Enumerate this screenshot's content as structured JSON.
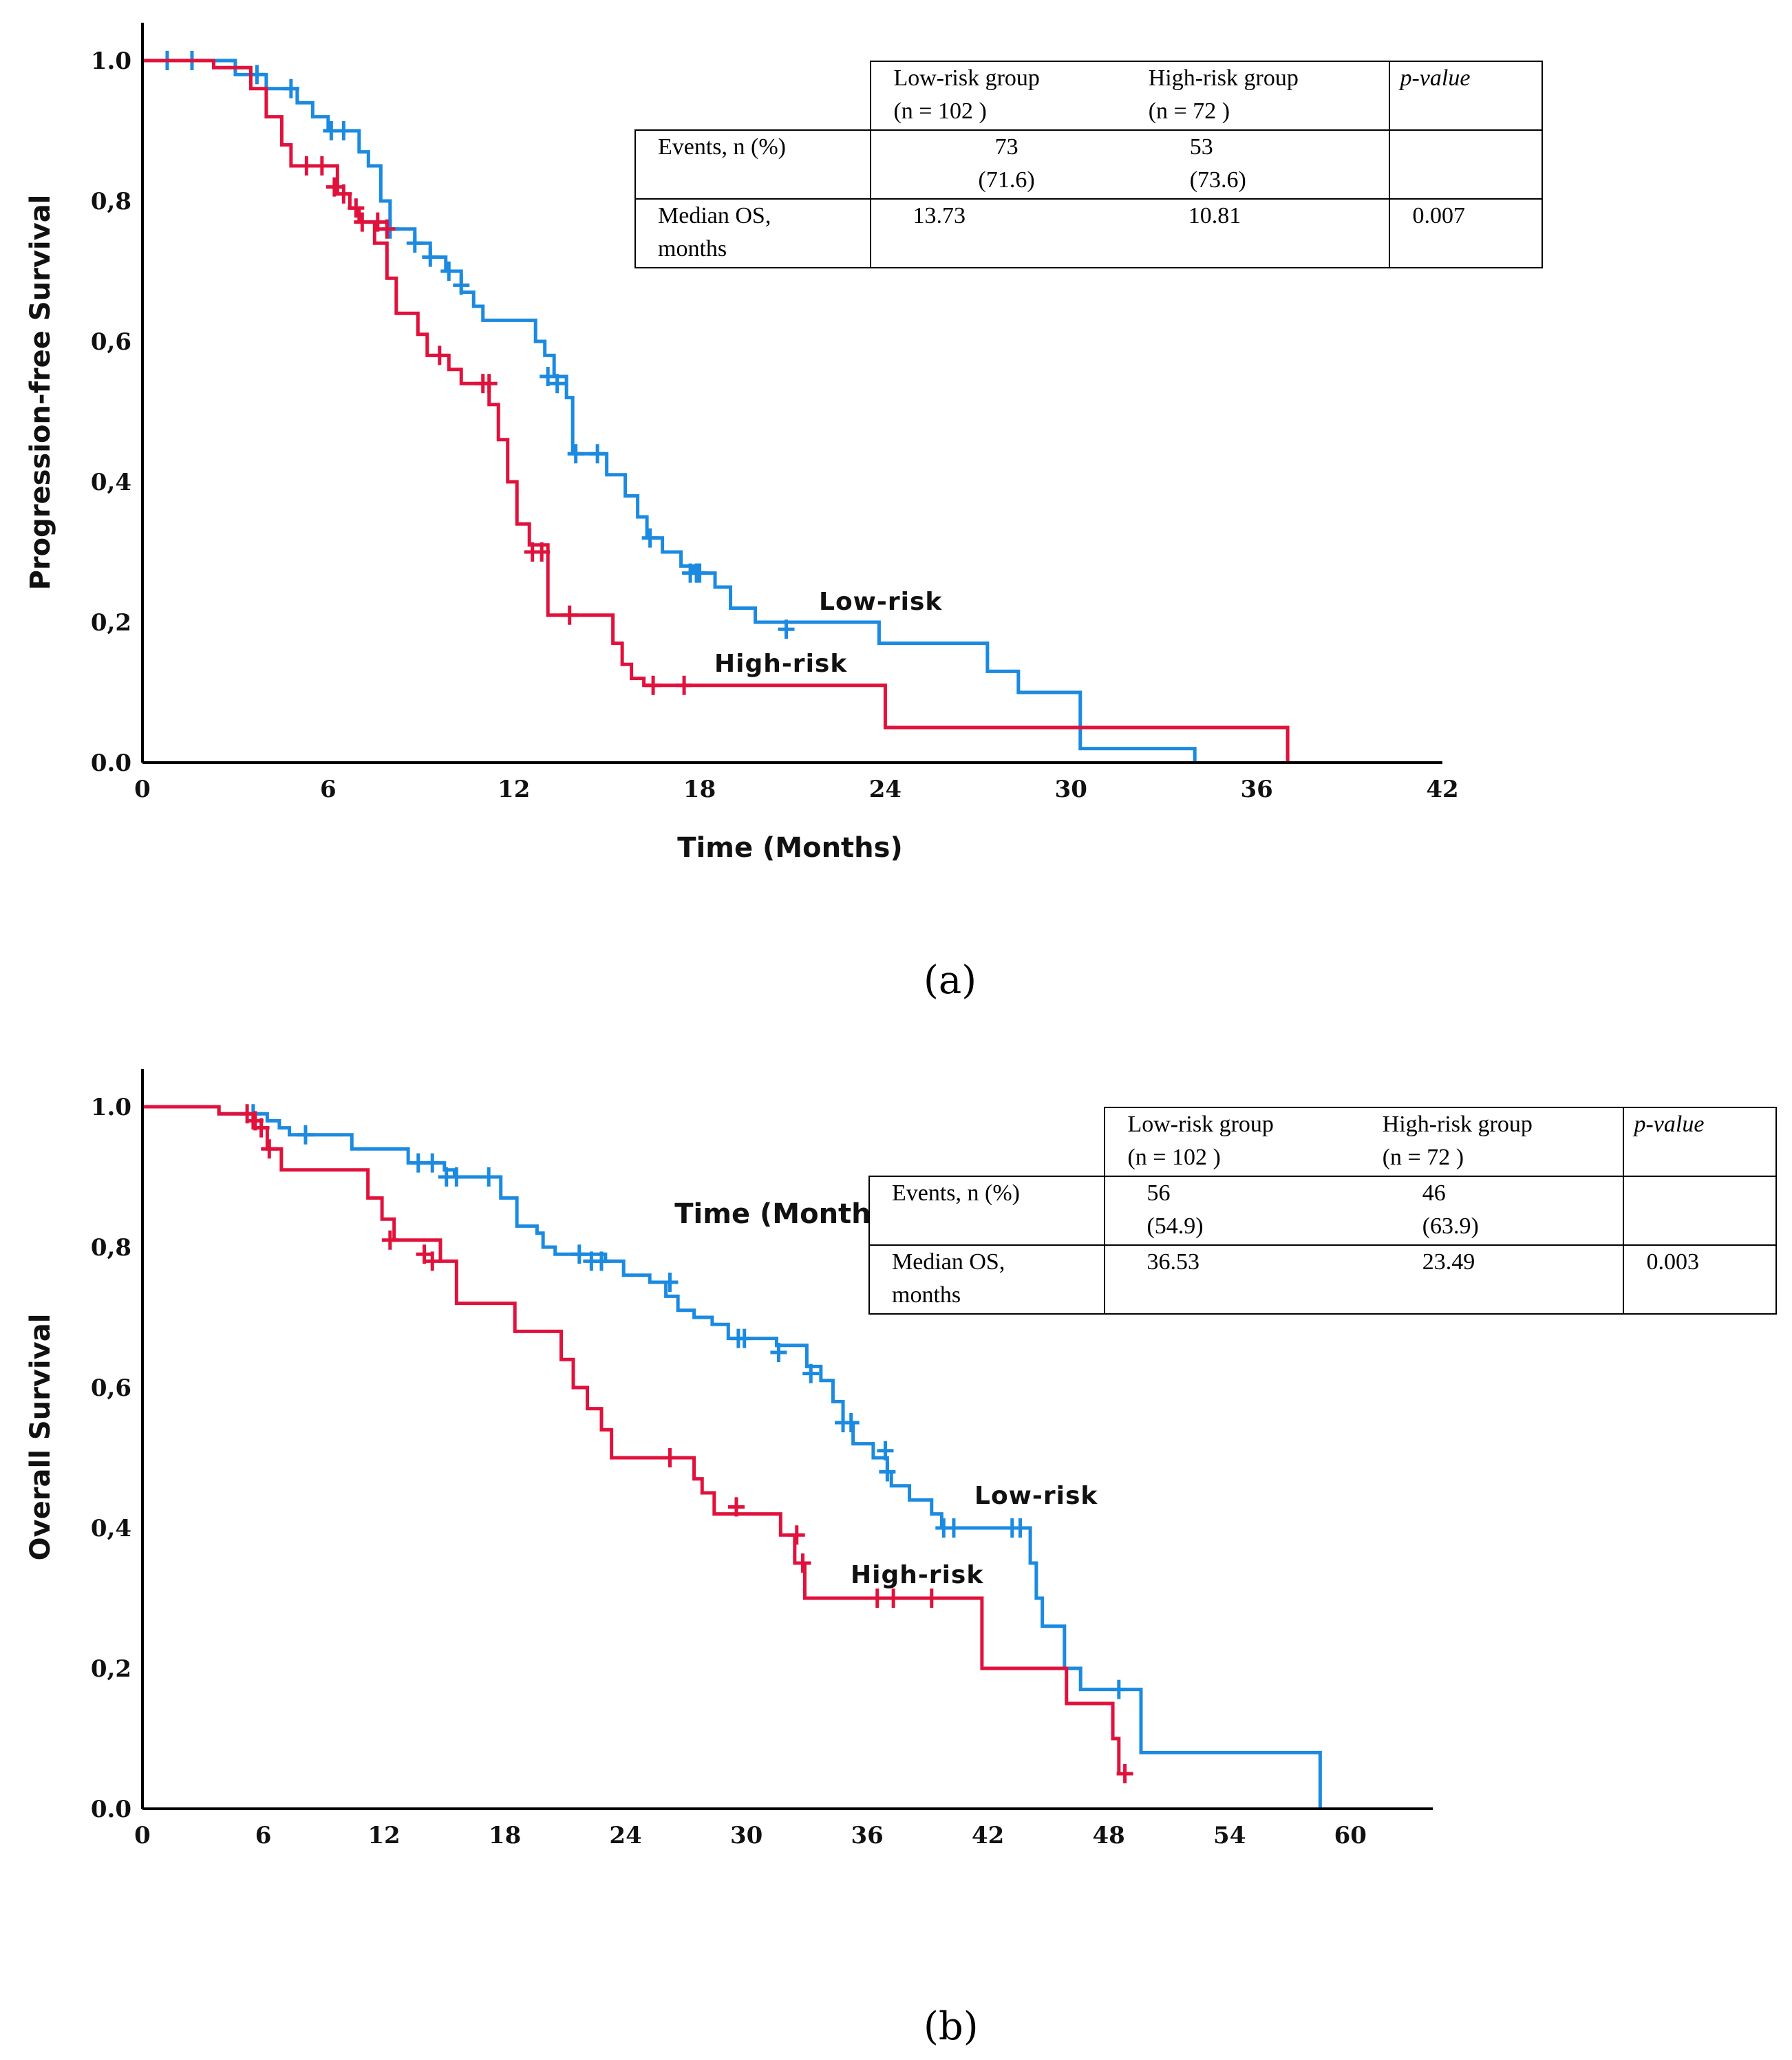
{
  "colors": {
    "low_risk": "#1b8ae0",
    "high_risk": "#e0123c",
    "axis": "#000000"
  },
  "chart_data": [
    {
      "type": "line",
      "panel_label": "(a)",
      "xlabel": "Time (Months)",
      "ylabel": "Progression-free Survival",
      "xlim": [
        0,
        42
      ],
      "ylim": [
        0,
        1.0
      ],
      "xticks": [
        "0",
        "6",
        "12",
        "18",
        "24",
        "30",
        "36",
        "42"
      ],
      "yticks": [
        "0.0",
        "0,2",
        "0,4",
        "0,6",
        "0,8",
        "1.0"
      ],
      "series": [
        {
          "name": "Low-risk",
          "label": "Low-risk",
          "color_key": "low_risk",
          "steps": [
            [
              0,
              1.0
            ],
            [
              3,
              0.98
            ],
            [
              4,
              0.96
            ],
            [
              5,
              0.94
            ],
            [
              5.5,
              0.92
            ],
            [
              6,
              0.9
            ],
            [
              7,
              0.87
            ],
            [
              7.3,
              0.85
            ],
            [
              7.7,
              0.8
            ],
            [
              8,
              0.76
            ],
            [
              8.8,
              0.74
            ],
            [
              9.3,
              0.72
            ],
            [
              9.8,
              0.7
            ],
            [
              10.3,
              0.67
            ],
            [
              10.7,
              0.65
            ],
            [
              11,
              0.63
            ],
            [
              12.7,
              0.6
            ],
            [
              13,
              0.58
            ],
            [
              13.3,
              0.55
            ],
            [
              13.7,
              0.52
            ],
            [
              13.9,
              0.44
            ],
            [
              15,
              0.41
            ],
            [
              15.6,
              0.38
            ],
            [
              16,
              0.35
            ],
            [
              16.3,
              0.32
            ],
            [
              16.8,
              0.3
            ],
            [
              17.4,
              0.28
            ],
            [
              17.8,
              0.27
            ],
            [
              18.5,
              0.25
            ],
            [
              19,
              0.22
            ],
            [
              19.8,
              0.2
            ],
            [
              23.8,
              0.17
            ],
            [
              27.3,
              0.13
            ],
            [
              28.3,
              0.1
            ],
            [
              30.3,
              0.02
            ],
            [
              34,
              0.0
            ]
          ],
          "end_x": 34,
          "censors": [
            [
              0.8,
              1.0
            ],
            [
              1.6,
              1.0
            ],
            [
              3.7,
              0.98
            ],
            [
              4.8,
              0.96
            ],
            [
              6.1,
              0.9
            ],
            [
              6.5,
              0.9
            ],
            [
              8.0,
              0.76
            ],
            [
              8.8,
              0.74
            ],
            [
              9.3,
              0.72
            ],
            [
              9.9,
              0.7
            ],
            [
              10.3,
              0.68
            ],
            [
              13.1,
              0.55
            ],
            [
              13.4,
              0.54
            ],
            [
              14.0,
              0.44
            ],
            [
              14.7,
              0.44
            ],
            [
              16.4,
              0.32
            ],
            [
              17.7,
              0.27
            ],
            [
              17.9,
              0.27
            ],
            [
              18.0,
              0.27
            ],
            [
              20.8,
              0.19
            ]
          ]
        },
        {
          "name": "High-risk",
          "label": "High-risk",
          "color_key": "high_risk",
          "steps": [
            [
              0,
              1.0
            ],
            [
              2.3,
              0.99
            ],
            [
              3.5,
              0.96
            ],
            [
              4,
              0.92
            ],
            [
              4.5,
              0.88
            ],
            [
              4.8,
              0.85
            ],
            [
              6.3,
              0.81
            ],
            [
              6.7,
              0.79
            ],
            [
              7,
              0.77
            ],
            [
              7.5,
              0.74
            ],
            [
              7.9,
              0.69
            ],
            [
              8.2,
              0.64
            ],
            [
              8.9,
              0.61
            ],
            [
              9.2,
              0.58
            ],
            [
              9.9,
              0.56
            ],
            [
              10.3,
              0.54
            ],
            [
              11.2,
              0.51
            ],
            [
              11.5,
              0.46
            ],
            [
              11.8,
              0.4
            ],
            [
              12.1,
              0.34
            ],
            [
              12.5,
              0.31
            ],
            [
              13.1,
              0.26
            ],
            [
              13.1,
              0.21
            ],
            [
              15.2,
              0.17
            ],
            [
              15.5,
              0.14
            ],
            [
              15.8,
              0.12
            ],
            [
              16.2,
              0.11
            ],
            [
              24,
              0.05
            ]
          ],
          "end_x": 37,
          "censors": [
            [
              5.3,
              0.85
            ],
            [
              5.8,
              0.85
            ],
            [
              6.2,
              0.82
            ],
            [
              6.5,
              0.81
            ],
            [
              6.9,
              0.79
            ],
            [
              7.1,
              0.77
            ],
            [
              7.6,
              0.77
            ],
            [
              7.9,
              0.76
            ],
            [
              9.6,
              0.58
            ],
            [
              11.0,
              0.54
            ],
            [
              11.2,
              0.54
            ],
            [
              12.6,
              0.3
            ],
            [
              12.9,
              0.3
            ],
            [
              13.8,
              0.21
            ],
            [
              16.5,
              0.11
            ],
            [
              17.5,
              0.11
            ]
          ]
        }
      ],
      "table": {
        "col_headers": [
          "Low-risk group\n(n = 102 )",
          "High-risk group\n(n = 72 )",
          "p-value"
        ],
        "rows": [
          {
            "label": "Events, n (%)",
            "low": "73\n(71.6)",
            "high": "53\n(73.6)",
            "p": ""
          },
          {
            "label": "Median OS,\nmonths",
            "low": "13.73",
            "high": "10.81",
            "p": "0.007"
          }
        ]
      }
    },
    {
      "type": "line",
      "panel_label": "(b)",
      "xlabel": "Time (Months)",
      "ylabel": "Overall Survival",
      "xlim": [
        0,
        63
      ],
      "ylim": [
        0,
        1.0
      ],
      "xticks": [
        "0",
        "6",
        "12",
        "18",
        "24",
        "30",
        "36",
        "42",
        "48",
        "54",
        "60"
      ],
      "yticks": [
        "0.0",
        "0,2",
        "0,4",
        "0,6",
        "0,8",
        "1.0"
      ],
      "series": [
        {
          "name": "Low-risk",
          "label": "Low-risk",
          "color_key": "low_risk",
          "steps": [
            [
              0,
              1.0
            ],
            [
              3.8,
              0.99
            ],
            [
              6.2,
              0.98
            ],
            [
              6.8,
              0.97
            ],
            [
              7.3,
              0.96
            ],
            [
              10.4,
              0.94
            ],
            [
              13.2,
              0.92
            ],
            [
              15,
              0.91
            ],
            [
              15.5,
              0.9
            ],
            [
              17.8,
              0.87
            ],
            [
              18.6,
              0.83
            ],
            [
              19.6,
              0.82
            ],
            [
              19.9,
              0.8
            ],
            [
              20.5,
              0.79
            ],
            [
              23,
              0.78
            ],
            [
              23.9,
              0.76
            ],
            [
              25.2,
              0.75
            ],
            [
              26,
              0.73
            ],
            [
              26.6,
              0.71
            ],
            [
              27.4,
              0.7
            ],
            [
              28.3,
              0.69
            ],
            [
              29.1,
              0.67
            ],
            [
              31.5,
              0.66
            ],
            [
              33,
              0.63
            ],
            [
              33.7,
              0.61
            ],
            [
              34.3,
              0.58
            ],
            [
              34.8,
              0.55
            ],
            [
              35.3,
              0.52
            ],
            [
              36.3,
              0.5
            ],
            [
              37,
              0.48
            ],
            [
              37.2,
              0.46
            ],
            [
              38.1,
              0.44
            ],
            [
              39.2,
              0.42
            ],
            [
              39.7,
              0.4
            ],
            [
              44.1,
              0.35
            ],
            [
              44.4,
              0.3
            ],
            [
              44.7,
              0.26
            ],
            [
              45.8,
              0.2
            ],
            [
              46.6,
              0.17
            ],
            [
              49.6,
              0.08
            ],
            [
              58.5,
              0.0
            ]
          ],
          "end_x": 58.5,
          "censors": [
            [
              5.5,
              0.99
            ],
            [
              8.1,
              0.96
            ],
            [
              13.7,
              0.92
            ],
            [
              14.4,
              0.92
            ],
            [
              15.1,
              0.9
            ],
            [
              15.6,
              0.9
            ],
            [
              17.2,
              0.9
            ],
            [
              21.7,
              0.79
            ],
            [
              22.3,
              0.78
            ],
            [
              22.8,
              0.78
            ],
            [
              26.2,
              0.75
            ],
            [
              29.6,
              0.67
            ],
            [
              29.9,
              0.67
            ],
            [
              31.6,
              0.65
            ],
            [
              33.2,
              0.62
            ],
            [
              34.8,
              0.55
            ],
            [
              35.2,
              0.55
            ],
            [
              36.9,
              0.51
            ],
            [
              37.0,
              0.48
            ],
            [
              39.8,
              0.4
            ],
            [
              40.3,
              0.4
            ],
            [
              43.2,
              0.4
            ],
            [
              43.6,
              0.4
            ],
            [
              48.5,
              0.17
            ]
          ]
        },
        {
          "name": "High-risk",
          "label": "High-risk",
          "color_key": "high_risk",
          "steps": [
            [
              0,
              1.0
            ],
            [
              3.8,
              0.99
            ],
            [
              5.5,
              0.97
            ],
            [
              6.2,
              0.94
            ],
            [
              6.9,
              0.91
            ],
            [
              11.2,
              0.87
            ],
            [
              11.9,
              0.84
            ],
            [
              12.5,
              0.81
            ],
            [
              14.8,
              0.78
            ],
            [
              15.6,
              0.72
            ],
            [
              18.5,
              0.68
            ],
            [
              20.8,
              0.64
            ],
            [
              21.4,
              0.6
            ],
            [
              22.1,
              0.57
            ],
            [
              22.8,
              0.54
            ],
            [
              23.3,
              0.5
            ],
            [
              27.4,
              0.47
            ],
            [
              27.8,
              0.45
            ],
            [
              28.4,
              0.42
            ],
            [
              31.7,
              0.39
            ],
            [
              32.4,
              0.35
            ],
            [
              32.9,
              0.3
            ],
            [
              41.7,
              0.2
            ],
            [
              45.9,
              0.15
            ],
            [
              48.2,
              0.1
            ],
            [
              48.5,
              0.05
            ]
          ],
          "end_x": 49.2,
          "censors": [
            [
              5.2,
              0.99
            ],
            [
              5.6,
              0.98
            ],
            [
              5.9,
              0.97
            ],
            [
              6.3,
              0.94
            ],
            [
              12.3,
              0.81
            ],
            [
              14.0,
              0.79
            ],
            [
              14.4,
              0.78
            ],
            [
              26.2,
              0.5
            ],
            [
              29.5,
              0.43
            ],
            [
              32.5,
              0.39
            ],
            [
              32.8,
              0.35
            ],
            [
              36.5,
              0.3
            ],
            [
              37.3,
              0.3
            ],
            [
              39.2,
              0.3
            ],
            [
              48.8,
              0.05
            ]
          ]
        }
      ],
      "table": {
        "col_headers": [
          "Low-risk group\n(n = 102 )",
          "High-risk group\n(n = 72 )",
          "p-value"
        ],
        "rows": [
          {
            "label": "Events, n (%)",
            "low": "56\n(54.9)",
            "high": "46\n(63.9)",
            "p": ""
          },
          {
            "label": "Median OS,\nmonths",
            "low": "36.53",
            "high": "23.49",
            "p": "0.003"
          }
        ]
      }
    }
  ]
}
